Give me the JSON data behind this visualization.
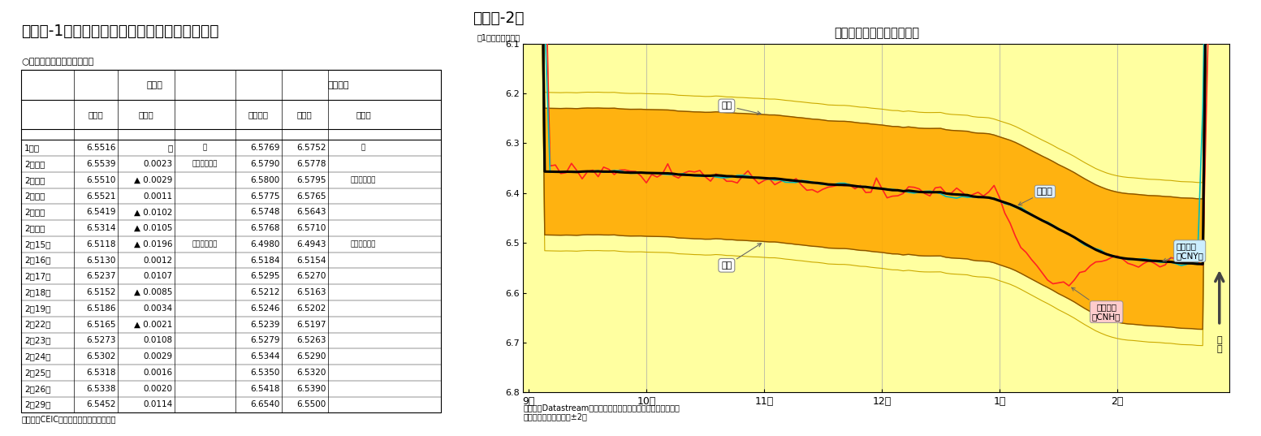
{
  "title_left": "（図表-1）　人民元（対米国ドル）の価格推移",
  "title_right": "（図表-2）",
  "chart_title": "基準値の上下限と市場実勢",
  "chart_ylabel": "（1米国ドル＝元）",
  "source_left": "（資料）CEIC（中国外貨取引センター）",
  "source_right": "（資料）Datastreamのデータを元にニッセイ基礎研究所で作成\n（注）上下限は基準値±2％",
  "table_subtitle": "○人民元相場（対米国ドル）",
  "table_rows": [
    [
      "1月末",
      "6.5516",
      "－",
      "－",
      "6.5769",
      "6.5752",
      "－"
    ],
    [
      "2月１日",
      "6.5539",
      "0.0023",
      "（当月安値）",
      "6.5790",
      "6.5778",
      ""
    ],
    [
      "2月２日",
      "6.5510",
      "▲ 0.0029",
      "",
      "6.5800",
      "6.5795",
      "（当月安値）"
    ],
    [
      "2月３日",
      "6.5521",
      "0.0011",
      "",
      "6.5775",
      "6.5765",
      ""
    ],
    [
      "2月４日",
      "6.5419",
      "▲ 0.0102",
      "",
      "6.5748",
      "6.5643",
      ""
    ],
    [
      "2月５日",
      "6.5314",
      "▲ 0.0105",
      "",
      "6.5768",
      "6.5710",
      ""
    ],
    [
      "2月15日",
      "6.5118",
      "▲ 0.0196",
      "（当月高値）",
      "6.4980",
      "6.4943",
      "（当月高値）"
    ],
    [
      "2月16日",
      "6.5130",
      "0.0012",
      "",
      "6.5184",
      "6.5154",
      ""
    ],
    [
      "2月17日",
      "6.5237",
      "0.0107",
      "",
      "6.5295",
      "6.5270",
      ""
    ],
    [
      "2月18日",
      "6.5152",
      "▲ 0.0085",
      "",
      "6.5212",
      "6.5163",
      ""
    ],
    [
      "2月19日",
      "6.5186",
      "0.0034",
      "",
      "6.5246",
      "6.5202",
      ""
    ],
    [
      "2月22日",
      "6.5165",
      "▲ 0.0021",
      "",
      "6.5239",
      "6.5197",
      ""
    ],
    [
      "2月23日",
      "6.5273",
      "0.0108",
      "",
      "6.5279",
      "6.5263",
      ""
    ],
    [
      "2月24日",
      "6.5302",
      "0.0029",
      "",
      "6.5344",
      "6.5290",
      ""
    ],
    [
      "2月25日",
      "6.5318",
      "0.0016",
      "",
      "6.5350",
      "6.5320",
      ""
    ],
    [
      "2月26日",
      "6.5338",
      "0.0020",
      "",
      "6.5418",
      "6.5390",
      ""
    ],
    [
      "2月29日",
      "6.5452",
      "0.0114",
      "",
      "6.6540",
      "6.5500",
      ""
    ]
  ],
  "yticks": [
    6.1,
    6.2,
    6.3,
    6.4,
    6.5,
    6.6,
    6.7,
    6.8
  ],
  "x_months": [
    "9月",
    "10月",
    "11月",
    "12月",
    "1月",
    "2月"
  ],
  "month_ticks": [
    0,
    22,
    44,
    66,
    88,
    110
  ],
  "baseline_color": "#000000",
  "cny_color": "#00bbbb",
  "cnh_color": "#ff2222",
  "band_outer_color": "#ffffa0",
  "band_inner_color": "#ffaa00",
  "band_outer_edge": "#ccaa00",
  "band_inner_edge": "#885500"
}
